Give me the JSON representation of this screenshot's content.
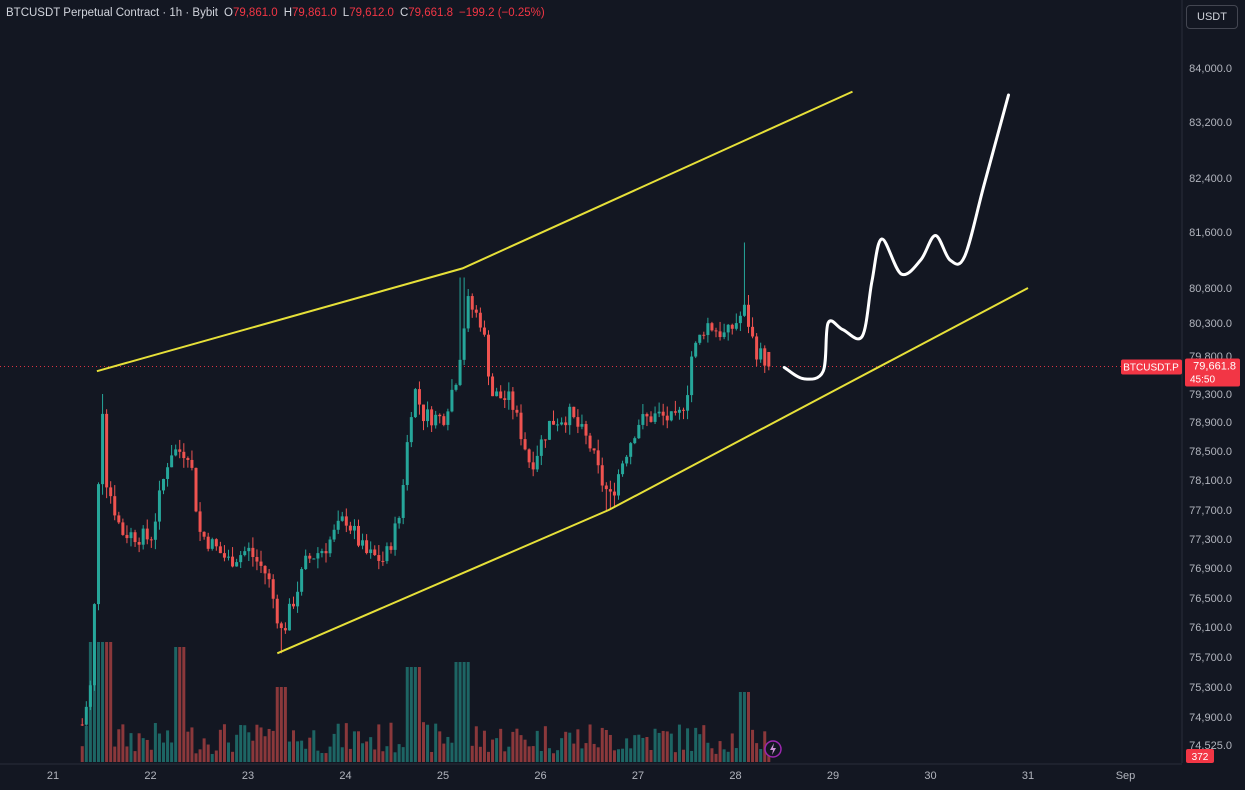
{
  "header": {
    "symbol": "BTCUSDT Perpetual Contract · 1h · Bybit",
    "open_label": "O",
    "open": "79,861.0",
    "high_label": "H",
    "high": "79,861.0",
    "low_label": "L",
    "low": "79,612.0",
    "close_label": "C",
    "close": "79,661.8",
    "change": "−199.2 (−0.25%)"
  },
  "unit_button": "USDT",
  "price_badge": {
    "symbol": "BTCUSDT.P",
    "price": "79,661.8",
    "countdown": "45:50"
  },
  "volume_badge": "372",
  "colors": {
    "background": "#131722",
    "up": "#26a69a",
    "down": "#ef5350",
    "channel": "#e6e039",
    "projection": "#ffffff",
    "price_line": "#f23645"
  },
  "chart_data": {
    "type": "candlestick",
    "timeframe": "1h",
    "x_ticks": [
      "21",
      "22",
      "23",
      "24",
      "25",
      "26",
      "27",
      "28",
      "29",
      "30",
      "31",
      "Sep"
    ],
    "y_ticks": [
      84000,
      83200,
      82400,
      81600,
      80800,
      80300,
      79800,
      79300,
      78900,
      78500,
      78100,
      77700,
      77300,
      76900,
      76500,
      76100,
      75700,
      75300,
      74900,
      74525
    ],
    "y_tick_labels": [
      "84,000.0",
      "83,200.0",
      "82,400.0",
      "81,600.0",
      "80,800.0",
      "80,300.0",
      "79,800.0",
      "79,300.0",
      "78,900.0",
      "78,500.0",
      "78,100.0",
      "77,700.0",
      "77,300.0",
      "76,900.0",
      "76,500.0",
      "76,100.0",
      "75,700.0",
      "75,300.0",
      "74,900.0",
      "74,525.0"
    ],
    "close_anchors": [
      [
        21.3,
        74800
      ],
      [
        21.4,
        75400
      ],
      [
        21.5,
        79300
      ],
      [
        21.55,
        78100
      ],
      [
        21.7,
        77400
      ],
      [
        22.0,
        77300
      ],
      [
        22.2,
        78500
      ],
      [
        22.4,
        78500
      ],
      [
        22.5,
        77400
      ],
      [
        22.8,
        77000
      ],
      [
        23.0,
        77150
      ],
      [
        23.2,
        76800
      ],
      [
        23.35,
        76000
      ],
      [
        23.6,
        77000
      ],
      [
        23.8,
        77200
      ],
      [
        24.0,
        77600
      ],
      [
        24.2,
        77100
      ],
      [
        24.4,
        77000
      ],
      [
        24.55,
        77600
      ],
      [
        24.7,
        79400
      ],
      [
        24.8,
        79000
      ],
      [
        25.0,
        78950
      ],
      [
        25.15,
        79600
      ],
      [
        25.25,
        80600
      ],
      [
        25.4,
        80300
      ],
      [
        25.5,
        79300
      ],
      [
        25.7,
        79200
      ],
      [
        25.9,
        78300
      ],
      [
        26.1,
        78900
      ],
      [
        26.3,
        79000
      ],
      [
        26.5,
        78600
      ],
      [
        26.62,
        78100
      ],
      [
        26.72,
        77850
      ],
      [
        26.85,
        78400
      ],
      [
        27.0,
        78900
      ],
      [
        27.2,
        79000
      ],
      [
        27.4,
        78900
      ],
      [
        27.5,
        79300
      ],
      [
        27.55,
        79800
      ],
      [
        27.7,
        80300
      ],
      [
        27.9,
        80100
      ],
      [
        28.1,
        80500
      ],
      [
        28.2,
        79900
      ],
      [
        28.35,
        79700
      ]
    ],
    "spikes": [
      [
        25.2,
        80950
      ],
      [
        28.1,
        81450
      ],
      [
        21.5,
        79300
      ],
      [
        23.35,
        75750
      ],
      [
        26.7,
        77700
      ]
    ],
    "last": {
      "open": 79861.0,
      "high": 79861.0,
      "low": 79612.0,
      "close": 79661.8
    },
    "channel_upper": [
      [
        21.45,
        79600
      ],
      [
        25.2,
        81080
      ],
      [
        29.2,
        83650
      ]
    ],
    "channel_lower": [
      [
        23.3,
        75750
      ],
      [
        26.7,
        77700
      ],
      [
        31.0,
        80800
      ]
    ],
    "projection": [
      [
        28.5,
        79650
      ],
      [
        28.7,
        79500
      ],
      [
        28.9,
        79600
      ],
      [
        28.95,
        80300
      ],
      [
        29.1,
        80200
      ],
      [
        29.3,
        80100
      ],
      [
        29.4,
        80900
      ],
      [
        29.5,
        81500
      ],
      [
        29.7,
        81000
      ],
      [
        29.9,
        81200
      ],
      [
        30.05,
        81550
      ],
      [
        30.2,
        81200
      ],
      [
        30.35,
        81250
      ],
      [
        30.55,
        82300
      ],
      [
        30.8,
        83600
      ]
    ]
  }
}
